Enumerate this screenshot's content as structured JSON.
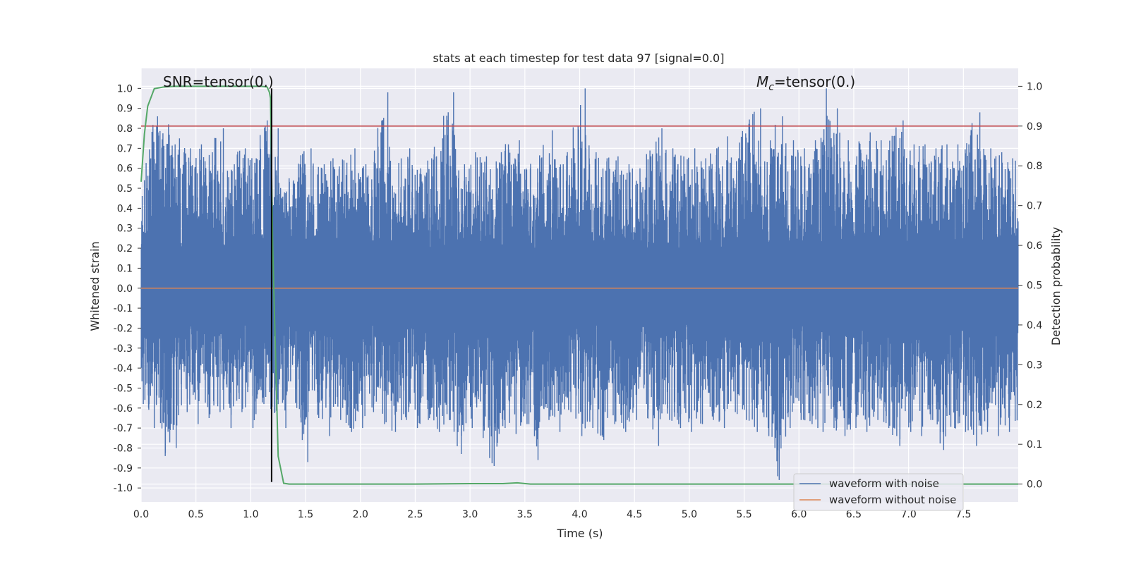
{
  "chart_data": {
    "type": "line",
    "title": "stats at each timestep for test data 97 [signal=0.0]",
    "xlabel": "Time (s)",
    "ylabel": "Whitened strain",
    "y2label": "Detection probability",
    "xlim": [
      0.0,
      8.0
    ],
    "ylim": [
      -1.07,
      1.1
    ],
    "y2lim": [
      -0.045,
      1.045
    ],
    "x_ticks": [
      "0.0",
      "0.5",
      "1.0",
      "1.5",
      "2.0",
      "2.5",
      "3.0",
      "3.5",
      "4.0",
      "4.5",
      "5.0",
      "5.5",
      "6.0",
      "6.5",
      "7.0",
      "7.5"
    ],
    "y_ticks": [
      "1.0",
      "0.9",
      "0.8",
      "0.7",
      "0.6",
      "0.5",
      "0.4",
      "0.3",
      "0.2",
      "0.1",
      "0.0",
      "-0.1",
      "-0.2",
      "-0.3",
      "-0.4",
      "-0.5",
      "-0.6",
      "-0.7",
      "-0.8",
      "-0.9",
      "-1.0"
    ],
    "y2_ticks": [
      "1.0",
      "0.9",
      "0.8",
      "0.7",
      "0.6",
      "0.5",
      "0.4",
      "0.3",
      "0.2",
      "0.1",
      "0.0"
    ],
    "grid": true,
    "legend_position": "bottom-right",
    "annotations": {
      "snr": "SNR=tensor(0.)",
      "mc_symbol": "M",
      "mc_subscript": "c",
      "mc_text": "=tensor(0.)"
    },
    "series": [
      {
        "name": "waveform with noise",
        "axis": "left",
        "color": "#4c72b0",
        "description_range": [
          -1.0,
          1.0
        ],
        "envelope": {
          "x": [
            0.0,
            0.1,
            0.2,
            0.3,
            0.4,
            0.5,
            0.6,
            0.7,
            0.8,
            0.9,
            1.0,
            1.1,
            1.2,
            1.3,
            1.4,
            1.5,
            1.6,
            1.7,
            1.8,
            1.9,
            2.0,
            2.1,
            2.2,
            2.3,
            2.4,
            2.5,
            2.6,
            2.7,
            2.8,
            2.9,
            3.0,
            3.1,
            3.2,
            3.3,
            3.4,
            3.5,
            3.6,
            3.7,
            3.8,
            3.9,
            4.0,
            4.1,
            4.2,
            4.3,
            4.4,
            4.5,
            4.6,
            4.7,
            4.8,
            4.9,
            5.0,
            5.1,
            5.2,
            5.3,
            5.4,
            5.5,
            5.6,
            5.7,
            5.8,
            5.9,
            6.0,
            6.1,
            6.2,
            6.3,
            6.4,
            6.5,
            6.6,
            6.7,
            6.8,
            6.9,
            7.0,
            7.1,
            7.2,
            7.3,
            7.4,
            7.5,
            7.6,
            7.7,
            7.8,
            7.9
          ],
          "max": [
            0.5,
            0.86,
            0.82,
            0.75,
            0.7,
            0.72,
            0.68,
            0.8,
            0.62,
            0.7,
            0.65,
            0.84,
            0.8,
            0.55,
            0.62,
            0.7,
            0.6,
            0.65,
            0.64,
            0.7,
            0.62,
            0.6,
            0.98,
            0.62,
            0.7,
            0.6,
            0.65,
            0.75,
            0.98,
            0.62,
            0.68,
            0.66,
            0.6,
            0.72,
            0.74,
            0.6,
            0.65,
            0.79,
            0.62,
            0.7,
            1.0,
            0.68,
            0.65,
            0.66,
            0.62,
            0.6,
            0.66,
            0.8,
            0.7,
            0.66,
            0.7,
            0.65,
            0.7,
            0.76,
            0.65,
            0.82,
            0.9,
            0.7,
            0.86,
            0.74,
            0.7,
            0.74,
            1.0,
            0.9,
            0.74,
            0.7,
            0.78,
            0.74,
            0.72,
            0.84,
            0.72,
            0.72,
            0.7,
            0.72,
            0.72,
            0.72,
            0.88,
            0.7,
            0.68,
            0.65
          ],
          "min": [
            -0.58,
            -0.7,
            -0.84,
            -0.8,
            -0.62,
            -0.68,
            -0.65,
            -0.62,
            -0.7,
            -0.62,
            -0.7,
            -0.58,
            -0.62,
            -0.7,
            -0.6,
            -0.87,
            -0.65,
            -0.74,
            -0.66,
            -0.72,
            -0.7,
            -0.62,
            -0.68,
            -0.72,
            -0.66,
            -0.7,
            -0.66,
            -0.72,
            -0.66,
            -0.83,
            -0.7,
            -0.75,
            -0.89,
            -0.7,
            -0.73,
            -0.68,
            -0.86,
            -0.66,
            -0.72,
            -0.62,
            -0.74,
            -0.7,
            -0.76,
            -0.68,
            -0.72,
            -0.66,
            -0.65,
            -0.79,
            -0.66,
            -0.7,
            -0.72,
            -0.68,
            -0.66,
            -0.7,
            -0.62,
            -0.66,
            -0.72,
            -0.7,
            -0.96,
            -0.7,
            -0.66,
            -0.68,
            -0.72,
            -0.7,
            -0.74,
            -0.7,
            -0.72,
            -0.66,
            -0.7,
            -0.79,
            -0.72,
            -0.74,
            -0.66,
            -0.81,
            -0.7,
            -0.72,
            -0.79,
            -0.72,
            -0.74,
            -0.72
          ]
        }
      },
      {
        "name": "waveform without noise",
        "axis": "left",
        "color": "#dd8452",
        "x": [
          0.0,
          8.0
        ],
        "y": [
          0.0,
          0.0
        ]
      },
      {
        "name": "",
        "axis": "right",
        "color": "#55a868",
        "x": [
          0.0,
          0.03,
          0.06,
          0.12,
          0.2,
          0.3,
          0.5,
          0.8,
          1.0,
          1.1,
          1.15,
          1.17,
          1.18,
          1.2,
          1.25,
          1.3,
          1.35,
          1.4,
          1.6,
          2.0,
          2.5,
          3.0,
          3.3,
          3.43,
          3.55,
          4.0,
          5.0,
          6.0,
          7.0,
          8.0
        ],
        "y": [
          0.76,
          0.88,
          0.95,
          0.994,
          0.998,
          1.0,
          1.0,
          1.0,
          1.0,
          1.0,
          0.998,
          0.985,
          0.97,
          0.6,
          0.07,
          0.002,
          0.0,
          0.0,
          0.0,
          0.0,
          0.0,
          0.001,
          0.001,
          0.003,
          0.0,
          0.0,
          0.0,
          0.0,
          0.0,
          0.0
        ]
      }
    ],
    "threshold": {
      "axis": "right",
      "value": 0.9,
      "color": "#c44e52"
    },
    "vline": {
      "x": 1.19,
      "ymin": -0.97,
      "ymax": 1.0,
      "color": "#000000"
    }
  }
}
